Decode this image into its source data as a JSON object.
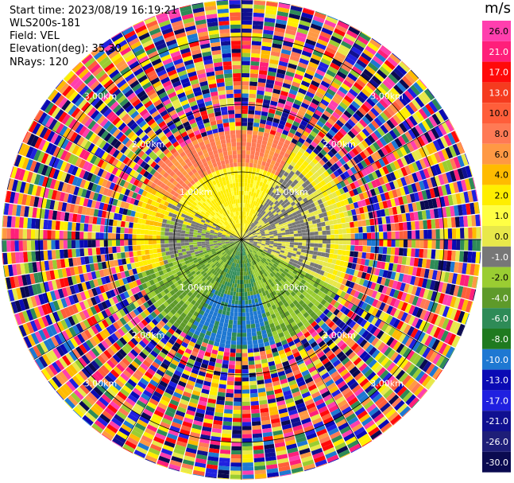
{
  "info": {
    "start_time": "Start time: 2023/08/19 16:19:21",
    "instrument": "WLS200s-181",
    "field": "Field: VEL",
    "elevation": "Elevation(deg): 35.30",
    "nrays": "NRays: 120"
  },
  "chart_data": {
    "type": "heatmap",
    "projection": "polar-ppi",
    "rays": 120,
    "range_rings_km": [
      1.0,
      2.0,
      3.0
    ],
    "ring_labels": [
      "1.00km",
      "2.00km",
      "3.00km"
    ],
    "max_range_km": 3.55,
    "colorbar": {
      "unit": "m/s",
      "ticks": [
        "26.0",
        "21.0",
        "17.0",
        "13.0",
        "10.0",
        "8.0",
        "6.0",
        "4.0",
        "2.0",
        "1.0",
        "0.0",
        "-1.0",
        "-2.0",
        "-4.0",
        "-6.0",
        "-8.0",
        "-10.0",
        "-13.0",
        "-17.0",
        "-21.0",
        "-26.0",
        "-30.0"
      ],
      "colors": [
        "#ff3fae",
        "#ff1f7a",
        "#ff0a0a",
        "#f53b1f",
        "#ff5e3a",
        "#ff7a55",
        "#ff9944",
        "#ffbb00",
        "#ffee00",
        "#ffff44",
        "#e8e84a",
        "#777777",
        "#9acd32",
        "#5e9a2a",
        "#2e8b57",
        "#1f7a1f",
        "#1e78d2",
        "#0a0ab4",
        "#2020e0",
        "#101090",
        "#1e1e78",
        "#0a0a50"
      ]
    }
  }
}
